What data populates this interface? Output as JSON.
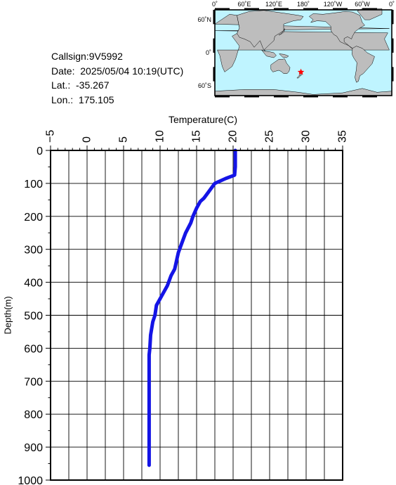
{
  "info": {
    "callsign": "Callsign:9V5992",
    "date": "Date:  2025/05/04 10:19(UTC)",
    "lat": "Lat.:  -35.267",
    "lon": "Lon.:  175.105"
  },
  "map": {
    "lon_labels": [
      "0˚",
      "60˚E",
      "120˚E",
      "180˚",
      "120˚W",
      "60˚W",
      "0˚"
    ],
    "lat_labels": [
      "60˚N",
      "0˚",
      "60˚S"
    ],
    "marker": {
      "lon": 175.105,
      "lat": -35.267
    },
    "colors": {
      "ocean": "#bff4ff",
      "land": "#bdbdbd",
      "marker": "#ff0000"
    }
  },
  "chart_data": {
    "type": "line",
    "xlabel": "Temperature(C)",
    "ylabel": "Depth(m)",
    "xlim": [
      -5,
      35
    ],
    "ylim": [
      0,
      1000
    ],
    "y_inverted": true,
    "x_axis_position": "top",
    "x_ticks": [
      -5,
      0,
      5,
      10,
      15,
      20,
      25,
      30,
      35
    ],
    "y_ticks": [
      0,
      100,
      200,
      300,
      400,
      500,
      600,
      700,
      800,
      900,
      1000
    ],
    "grid": true,
    "line_color": "#1414e6",
    "series": [
      {
        "x": [
          20.3,
          20.3,
          20.2,
          19.0,
          17.5,
          17.0,
          16.5,
          16.0,
          15.5,
          15.0,
          14.5,
          14.2,
          13.5,
          13.0,
          12.5,
          12.3,
          12.0,
          11.5,
          11.0,
          10.5,
          10.0,
          9.5,
          9.3,
          9.0,
          8.7,
          8.6,
          8.5,
          8.5,
          8.5,
          8.5,
          8.5,
          8.5
        ],
        "y": [
          0,
          50,
          75,
          85,
          100,
          115,
          130,
          145,
          155,
          175,
          200,
          220,
          250,
          280,
          310,
          330,
          360,
          380,
          410,
          430,
          450,
          470,
          500,
          520,
          560,
          600,
          620,
          700,
          800,
          880,
          930,
          955
        ]
      }
    ]
  }
}
